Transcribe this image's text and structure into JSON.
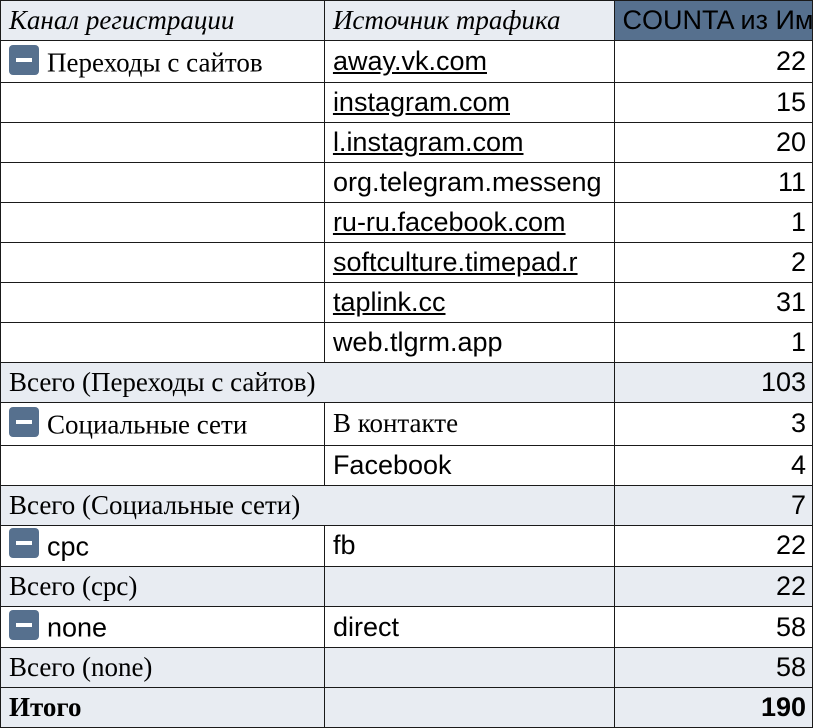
{
  "headers": {
    "channel": "Канал регистрации",
    "source": "Источник трафика",
    "value": "COUNTA из Им"
  },
  "groups": [
    {
      "name": "Переходы с сайтов",
      "rows": [
        {
          "source": "away.vk.com",
          "count": "22",
          "link": true
        },
        {
          "source": "instagram.com",
          "count": "15",
          "link": true
        },
        {
          "source": "l.instagram.com",
          "count": "20",
          "link": true
        },
        {
          "source": "org.telegram.messeng",
          "count": "11",
          "link": false
        },
        {
          "source": "ru-ru.facebook.com",
          "count": "1",
          "link": true
        },
        {
          "source": "softculture.timepad.r",
          "count": "2",
          "link": true
        },
        {
          "source": "taplink.cc",
          "count": "31",
          "link": true
        },
        {
          "source": "web.tlgrm.app",
          "count": "1",
          "link": false
        }
      ],
      "total_label": "Всего (Переходы с сайтов)",
      "total": "103"
    },
    {
      "name": "Социальные сети",
      "rows": [
        {
          "source": "В контакте",
          "count": "3",
          "link": false
        },
        {
          "source": "Facebook",
          "count": "4",
          "link": false
        }
      ],
      "total_label": "Всего (Социальные сети)",
      "total": "7"
    },
    {
      "name": "cpc",
      "rows": [
        {
          "source": "fb",
          "count": "22",
          "link": false
        }
      ],
      "total_label": "Всего (cpc)",
      "total": "22"
    },
    {
      "name": "none",
      "rows": [
        {
          "source": "direct",
          "count": "58",
          "link": false
        }
      ],
      "total_label": "Всего (none)",
      "total": "58"
    }
  ],
  "grand_total": {
    "label": "Итого",
    "value": "190"
  }
}
